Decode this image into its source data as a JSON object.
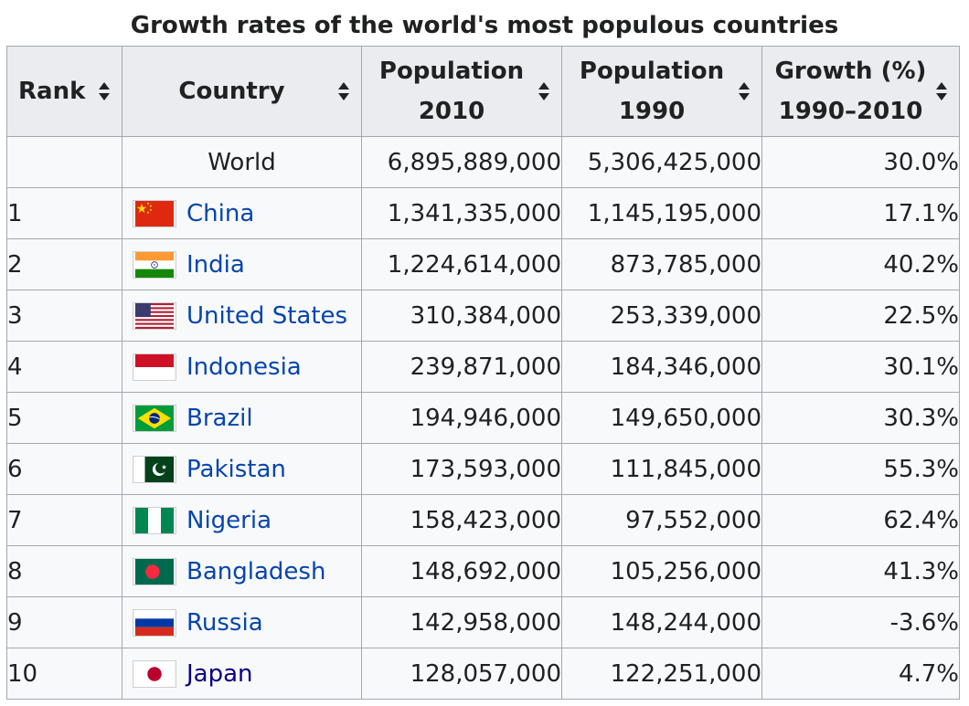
{
  "caption": "Growth rates of the world's most populous countries",
  "headers": {
    "rank": "Rank",
    "country": "Country",
    "pop2010_line1": "Population",
    "pop2010_line2": "2010",
    "pop1990_line1": "Population",
    "pop1990_line2": "1990",
    "growth_line1": "Growth (%)",
    "growth_line2": "1990–2010"
  },
  "world": {
    "name": "World",
    "pop2010": "6,895,889,000",
    "pop1990": "5,306,425,000",
    "growth": "30.0%"
  },
  "rows": [
    {
      "rank": "1",
      "country": "China",
      "pop2010": "1,341,335,000",
      "pop1990": "1,145,195,000",
      "growth": "17.1%",
      "flag": "china-flag-icon"
    },
    {
      "rank": "2",
      "country": "India",
      "pop2010": "1,224,614,000",
      "pop1990": "873,785,000",
      "growth": "40.2%",
      "flag": "india-flag-icon"
    },
    {
      "rank": "3",
      "country": "United States",
      "pop2010": "310,384,000",
      "pop1990": "253,339,000",
      "growth": "22.5%",
      "flag": "usa-flag-icon"
    },
    {
      "rank": "4",
      "country": "Indonesia",
      "pop2010": "239,871,000",
      "pop1990": "184,346,000",
      "growth": "30.1%",
      "flag": "indonesia-flag-icon"
    },
    {
      "rank": "5",
      "country": "Brazil",
      "pop2010": "194,946,000",
      "pop1990": "149,650,000",
      "growth": "30.3%",
      "flag": "brazil-flag-icon"
    },
    {
      "rank": "6",
      "country": "Pakistan",
      "pop2010": "173,593,000",
      "pop1990": "111,845,000",
      "growth": "55.3%",
      "flag": "pakistan-flag-icon"
    },
    {
      "rank": "7",
      "country": "Nigeria",
      "pop2010": "158,423,000",
      "pop1990": "97,552,000",
      "growth": "62.4%",
      "flag": "nigeria-flag-icon"
    },
    {
      "rank": "8",
      "country": "Bangladesh",
      "pop2010": "148,692,000",
      "pop1990": "105,256,000",
      "growth": "41.3%",
      "flag": "bangladesh-flag-icon"
    },
    {
      "rank": "9",
      "country": "Russia",
      "pop2010": "142,958,000",
      "pop1990": "148,244,000",
      "growth": "-3.6%",
      "flag": "russia-flag-icon"
    },
    {
      "rank": "10",
      "country": "Japan",
      "pop2010": "128,057,000",
      "pop1990": "122,251,000",
      "growth": "4.7%",
      "flag": "japan-flag-icon"
    }
  ],
  "colors": {
    "link": "#0645ad",
    "visited_link": "#0b0080",
    "header_bg": "#eaecf0",
    "cell_bg": "#f8f9fa",
    "border": "#a2a9b1"
  }
}
